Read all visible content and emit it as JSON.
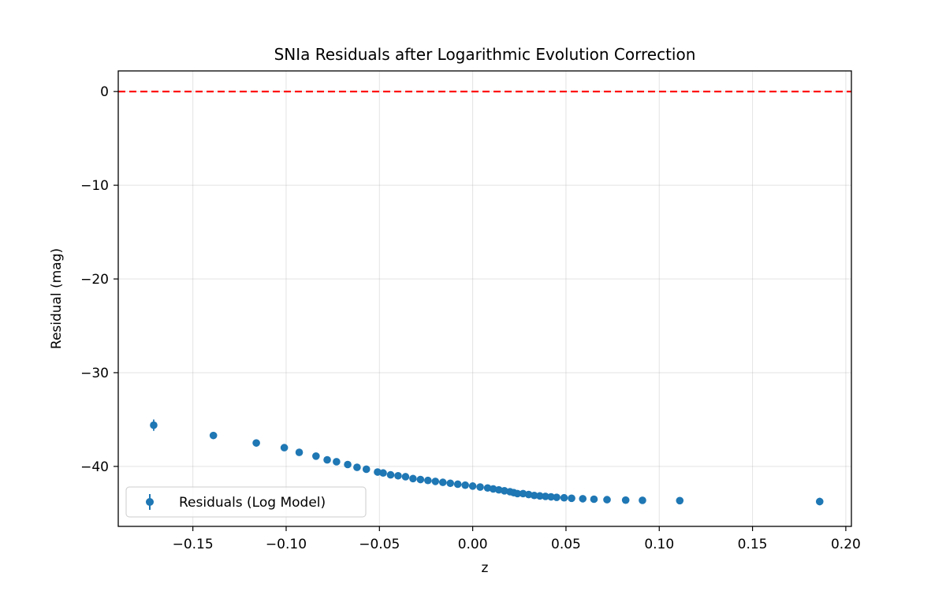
{
  "chart_data": {
    "type": "scatter",
    "title": "SNIa Residuals after Logarithmic Evolution Correction",
    "xlabel": "z",
    "ylabel": "Residual (mag)",
    "xlim": [
      -0.19,
      0.203
    ],
    "ylim": [
      -46.4,
      2.2
    ],
    "xticks": [
      -0.15,
      -0.1,
      -0.05,
      0.0,
      0.05,
      0.1,
      0.15,
      0.2
    ],
    "xtick_labels": [
      "−0.15",
      "−0.10",
      "−0.05",
      "0.00",
      "0.05",
      "0.10",
      "0.15",
      "0.20"
    ],
    "yticks": [
      0,
      -10,
      -20,
      -30,
      -40
    ],
    "ytick_labels": [
      "0",
      "−10",
      "−20",
      "−30",
      "−40"
    ],
    "grid": true,
    "legend_position": "lower-left",
    "reference_line": {
      "y": 0,
      "color": "#ff0000",
      "style": "dashed"
    },
    "series": [
      {
        "name": "Residuals (Log Model)",
        "color": "#1f77b4",
        "marker": "circle",
        "x": [
          -0.171,
          -0.139,
          -0.116,
          -0.101,
          -0.093,
          -0.084,
          -0.078,
          -0.073,
          -0.067,
          -0.062,
          -0.057,
          -0.051,
          -0.048,
          -0.044,
          -0.04,
          -0.036,
          -0.032,
          -0.028,
          -0.024,
          -0.02,
          -0.016,
          -0.012,
          -0.008,
          -0.004,
          0.0,
          0.004,
          0.008,
          0.011,
          0.014,
          0.017,
          0.02,
          0.022,
          0.024,
          0.027,
          0.03,
          0.033,
          0.036,
          0.039,
          0.042,
          0.045,
          0.049,
          0.053,
          0.059,
          0.065,
          0.072,
          0.082,
          0.091,
          0.111,
          0.186
        ],
        "y": [
          -35.6,
          -36.7,
          -37.5,
          -38.0,
          -38.5,
          -38.9,
          -39.3,
          -39.5,
          -39.8,
          -40.1,
          -40.3,
          -40.6,
          -40.7,
          -40.9,
          -41.0,
          -41.1,
          -41.3,
          -41.4,
          -41.5,
          -41.6,
          -41.7,
          -41.8,
          -41.9,
          -42.0,
          -42.1,
          -42.2,
          -42.3,
          -42.4,
          -42.5,
          -42.6,
          -42.7,
          -42.8,
          -42.9,
          -42.9,
          -43.0,
          -43.1,
          -43.15,
          -43.2,
          -43.25,
          -43.3,
          -43.35,
          -43.4,
          -43.45,
          -43.5,
          -43.55,
          -43.6,
          -43.62,
          -43.65,
          -43.75
        ],
        "yerr": [
          0.6,
          0.2,
          0.2,
          0.2,
          0.2,
          0.2,
          0.2,
          0.2,
          0.2,
          0.2,
          0.2,
          0.2,
          0.2,
          0.2,
          0.2,
          0.2,
          0.2,
          0.2,
          0.2,
          0.2,
          0.2,
          0.2,
          0.2,
          0.2,
          0.2,
          0.2,
          0.2,
          0.2,
          0.2,
          0.2,
          0.2,
          0.2,
          0.2,
          0.2,
          0.2,
          0.2,
          0.2,
          0.2,
          0.2,
          0.2,
          0.2,
          0.2,
          0.2,
          0.2,
          0.2,
          0.2,
          0.2,
          0.2,
          0.4
        ]
      }
    ]
  }
}
